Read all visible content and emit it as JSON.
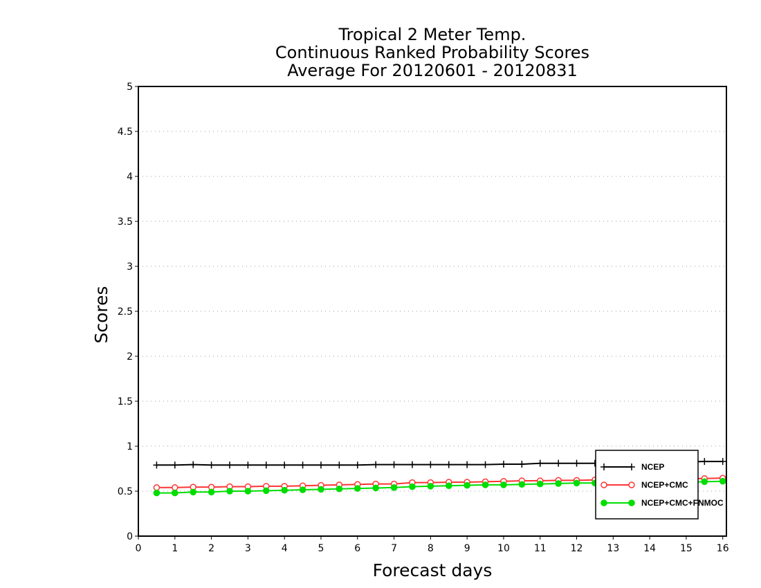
{
  "chart_data": {
    "type": "line",
    "title_lines": [
      "Tropical 2 Meter Temp.",
      "Continuous Ranked Probability Scores",
      "Average For 20120601 - 20120831"
    ],
    "xlabel": "Forecast days",
    "ylabel": "Scores",
    "xlim": [
      0,
      16.1
    ],
    "ylim": [
      0,
      5
    ],
    "x_ticks": [
      0,
      1,
      2,
      3,
      4,
      5,
      6,
      7,
      8,
      9,
      10,
      11,
      12,
      13,
      14,
      15,
      16
    ],
    "y_ticks": [
      0,
      0.5,
      1,
      1.5,
      2,
      2.5,
      3,
      3.5,
      4,
      4.5,
      5
    ],
    "y_tick_labels": [
      "0",
      "0.5",
      "1",
      "1.5",
      "2",
      "2.5",
      "3",
      "3.5",
      "4",
      "4.5",
      "5"
    ],
    "grid": "dotted horizontal",
    "legend_position": "bottom-right",
    "x": [
      0.5,
      1,
      1.5,
      2,
      2.5,
      3,
      3.5,
      4,
      4.5,
      5,
      5.5,
      6,
      6.5,
      7,
      7.5,
      8,
      8.5,
      9,
      9.5,
      10,
      10.5,
      11,
      11.5,
      12,
      12.5,
      13,
      13.5,
      14,
      14.5,
      15,
      15.5,
      16
    ],
    "series": [
      {
        "name": "NCEP",
        "color": "#000000",
        "marker": "plus",
        "values": [
          0.79,
          0.79,
          0.795,
          0.79,
          0.79,
          0.79,
          0.79,
          0.79,
          0.79,
          0.79,
          0.79,
          0.79,
          0.795,
          0.795,
          0.795,
          0.795,
          0.795,
          0.795,
          0.795,
          0.8,
          0.8,
          0.81,
          0.81,
          0.81,
          0.81,
          0.815,
          0.815,
          0.82,
          0.82,
          0.825,
          0.83,
          0.83
        ]
      },
      {
        "name": "NCEP+CMC",
        "color": "#ff3333",
        "marker": "open-circle",
        "values": [
          0.54,
          0.54,
          0.545,
          0.545,
          0.55,
          0.55,
          0.555,
          0.555,
          0.56,
          0.565,
          0.57,
          0.575,
          0.58,
          0.58,
          0.595,
          0.595,
          0.6,
          0.6,
          0.605,
          0.61,
          0.615,
          0.615,
          0.62,
          0.62,
          0.625,
          0.625,
          0.63,
          0.63,
          0.635,
          0.64,
          0.64,
          0.645
        ]
      },
      {
        "name": "NCEP+CMC+FNMOC",
        "color": "#00dd00",
        "marker": "filled-circle",
        "values": [
          0.48,
          0.48,
          0.49,
          0.49,
          0.5,
          0.5,
          0.505,
          0.51,
          0.515,
          0.52,
          0.525,
          0.53,
          0.535,
          0.54,
          0.55,
          0.555,
          0.56,
          0.565,
          0.57,
          0.57,
          0.575,
          0.58,
          0.585,
          0.59,
          0.59,
          0.595,
          0.595,
          0.6,
          0.6,
          0.6,
          0.605,
          0.61
        ]
      }
    ]
  }
}
